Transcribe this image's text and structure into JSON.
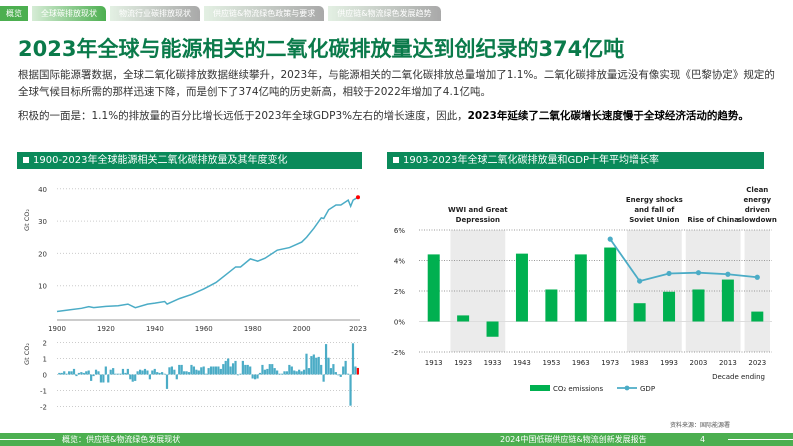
{
  "tabs": [
    "概览",
    "全球碳排放现状",
    "物流行业碳排放现状",
    "供应链&物流绿色政策与要求",
    "供应链&物流绿色发展趋势"
  ],
  "title": "2023年全球与能源相关的二氧化碳排放量达到创纪录的374亿吨",
  "para1": "根据国际能源署数据，全球二氧化碳排放数据继续攀升，2023年，与能源相关的二氧化碳排放总量增加了1.1%。二氧化碳排放量远没有像实现《巴黎协定》规定的全球气候目标所需的那样迅速下降，而是创下了374亿吨的历史新高，相较于2022年增加了4.1亿吨。",
  "para2_normal": "积极的一面是：1.1%的排放量的百分比增长远低于2023年全球GDP3%左右的增长速度，因此，",
  "para2_bold": "2023年延续了二氧化碳增长速度慢于全球经济活动的趋势。",
  "chart_left_title": "1900-2023年全球能源相关二氧化碳排放量及其年度变化",
  "chart_right_title": "1903-2023年全球二氧化碳排放量和GDP十年平均增长率",
  "source": "资料来源：国际能源署",
  "footer": {
    "left": "概览：供应链&物流绿色发展现状",
    "right": "2024中国低碳供应链&物流创新发展报告",
    "page": "4"
  },
  "colors": {
    "green": "#0a8a5a",
    "line": "#4bacc6",
    "highlight": "#ff0000",
    "bar": "#00b050"
  },
  "chart_data": [
    {
      "type": "line",
      "ylabel": "Gt CO₂",
      "xticks": [
        "1900",
        "1920",
        "1940",
        "1960",
        "1980",
        "2000",
        "2023"
      ],
      "yticks": [
        10,
        20,
        30,
        40
      ],
      "ylim": [
        0,
        42
      ],
      "grid": true,
      "x": [
        1900,
        1905,
        1910,
        1913,
        1915,
        1920,
        1925,
        1929,
        1932,
        1937,
        1940,
        1944,
        1945,
        1950,
        1955,
        1960,
        1965,
        1970,
        1973,
        1975,
        1979,
        1982,
        1985,
        1990,
        1995,
        2000,
        2002,
        2005,
        2008,
        2009,
        2011,
        2014,
        2016,
        2019,
        2020,
        2021,
        2023
      ],
      "y": [
        2,
        2.5,
        3,
        3.5,
        3.2,
        3.6,
        3.8,
        4.3,
        3.2,
        4.3,
        4.6,
        5.1,
        4.3,
        6,
        7.3,
        9,
        11,
        14,
        15.8,
        15.8,
        18.3,
        17.6,
        18.5,
        21,
        21.8,
        23.5,
        25,
        27.8,
        31,
        30.8,
        33.5,
        35,
        35,
        36.5,
        34.6,
        36.5,
        37.4
      ],
      "highlight_point": {
        "x": 2023,
        "y": 37.4
      }
    },
    {
      "type": "bar",
      "ylabel": "Gt CO₂",
      "yticks": [
        2,
        1,
        0,
        -1,
        -2
      ],
      "ylim": [
        -2,
        2
      ],
      "x_start": 1901,
      "x_end": 2023,
      "grid": true,
      "values": [
        0.1,
        0.1,
        0.2,
        0.05,
        0.2,
        0.2,
        0.35,
        -0.1,
        0.1,
        0.15,
        0.1,
        0.2,
        0.25,
        -0.4,
        -0.1,
        0.3,
        0.2,
        -0.5,
        -0.5,
        0.5,
        -0.5,
        0.3,
        0.4,
        0.05,
        0.05,
        0.05,
        0.35,
        0.1,
        0.35,
        -0.3,
        -0.45,
        -0.4,
        0.2,
        0.3,
        0.25,
        0.35,
        0.25,
        -0.3,
        0.25,
        0.35,
        0.15,
        0.1,
        0.15,
        0.05,
        -0.9,
        0.45,
        0.5,
        0.3,
        -0.3,
        0.6,
        0.6,
        0.2,
        0.2,
        0.15,
        0.6,
        0.5,
        0.3,
        0.25,
        0.45,
        0.5,
        0.05,
        0.4,
        0.5,
        0.5,
        0.5,
        0.5,
        0.35,
        0.65,
        0.85,
        1.0,
        0.5,
        0.7,
        0.85,
        -0.05,
        0.05,
        0.85,
        0.6,
        0.6,
        0.5,
        -0.25,
        -0.3,
        -0.25,
        0.1,
        0.6,
        0.3,
        0.35,
        0.65,
        0.65,
        0.4,
        0.25,
        0.05,
        0.05,
        0.2,
        0.2,
        0.6,
        0.5,
        0.25,
        0.2,
        0.3,
        0.2,
        0.3,
        1.3,
        0.4,
        1.15,
        1.25,
        1.05,
        1.1,
        0.6,
        -0.45,
        1.9,
        1.05,
        0.4,
        0.65,
        0.15,
        -0.05,
        -0.15,
        0.5,
        0.85,
        0.05,
        -1.95,
        1.95,
        0.5,
        0.41
      ]
    },
    {
      "type": "bar",
      "categories": [
        "1913",
        "1923",
        "1933",
        "1943",
        "1953",
        "1963",
        "1973",
        "1983",
        "1993",
        "2003",
        "2013",
        "2023"
      ],
      "series": [
        {
          "name": "CO₂ emissions",
          "type": "bar",
          "values": [
            4.4,
            0.4,
            -1.0,
            4.45,
            2.1,
            4.4,
            4.85,
            1.2,
            1.95,
            2.1,
            2.75,
            0.65
          ]
        },
        {
          "name": "GDP",
          "type": "line",
          "values": [
            null,
            null,
            null,
            null,
            null,
            null,
            5.4,
            2.65,
            3.15,
            3.2,
            3.1,
            2.9
          ]
        }
      ],
      "yticks": [
        "6%",
        "4%",
        "2%",
        "0%",
        "-2%"
      ],
      "ylim": [
        -2,
        6
      ],
      "xlabel": "Decade ending",
      "grid": true,
      "legend": "bottom",
      "shaded_periods": [
        {
          "from": "1923",
          "to": "1933",
          "label": "WWI and Great Depression"
        },
        {
          "from": "1983",
          "to": "1993",
          "label": "Energy shocks and fall of Soviet Union"
        },
        {
          "from": "2003",
          "to": "2013",
          "label": "Rise of China"
        },
        {
          "from": "2023",
          "to": "2023",
          "label": "Clean energy driven slowdown"
        }
      ]
    }
  ]
}
